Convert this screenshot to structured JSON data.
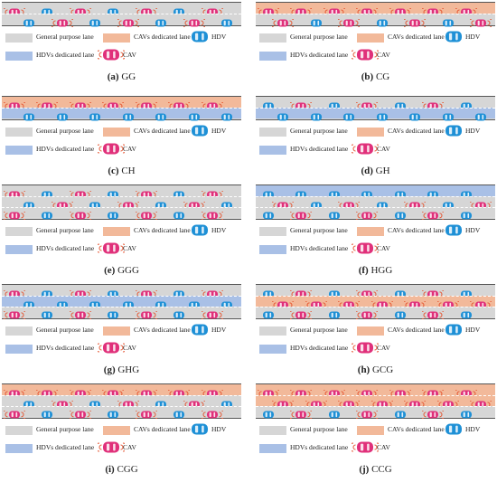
{
  "legend": {
    "general": "General purpose lane",
    "cav_lane": "CAVs dedicated lane",
    "hdv_lane": "HDVs dedicated lane",
    "hdv": "HDV",
    "cav": "CAV"
  },
  "colors": {
    "general": "#d6d6d6",
    "cav_lane": "#f2b99a",
    "hdv_lane": "#a9c0e6",
    "hdv_car": "#1e90d6",
    "cav_car": "#e0307a",
    "signal": "#e5532f"
  },
  "panels": [
    {
      "letter": "(a)",
      "name": "GG",
      "lanes": [
        "gp",
        "gp"
      ]
    },
    {
      "letter": "(b)",
      "name": "CG",
      "lanes": [
        "cav",
        "gp"
      ]
    },
    {
      "letter": "(c)",
      "name": "CH",
      "lanes": [
        "cav",
        "hdv"
      ]
    },
    {
      "letter": "(d)",
      "name": "GH",
      "lanes": [
        "gp",
        "hdv"
      ]
    },
    {
      "letter": "(e)",
      "name": "GGG",
      "lanes": [
        "gp",
        "gp",
        "gp"
      ]
    },
    {
      "letter": "(f)",
      "name": "HGG",
      "lanes": [
        "hdv",
        "gp",
        "gp"
      ]
    },
    {
      "letter": "(g)",
      "name": "GHG",
      "lanes": [
        "gp",
        "hdv",
        "gp"
      ]
    },
    {
      "letter": "(h)",
      "name": "GCG",
      "lanes": [
        "gp",
        "cav",
        "gp"
      ]
    },
    {
      "letter": "(i)",
      "name": "CGG",
      "lanes": [
        "cav",
        "gp",
        "gp"
      ]
    },
    {
      "letter": "(j)",
      "name": "CCG",
      "lanes": [
        "cav",
        "cav",
        "gp"
      ]
    }
  ]
}
